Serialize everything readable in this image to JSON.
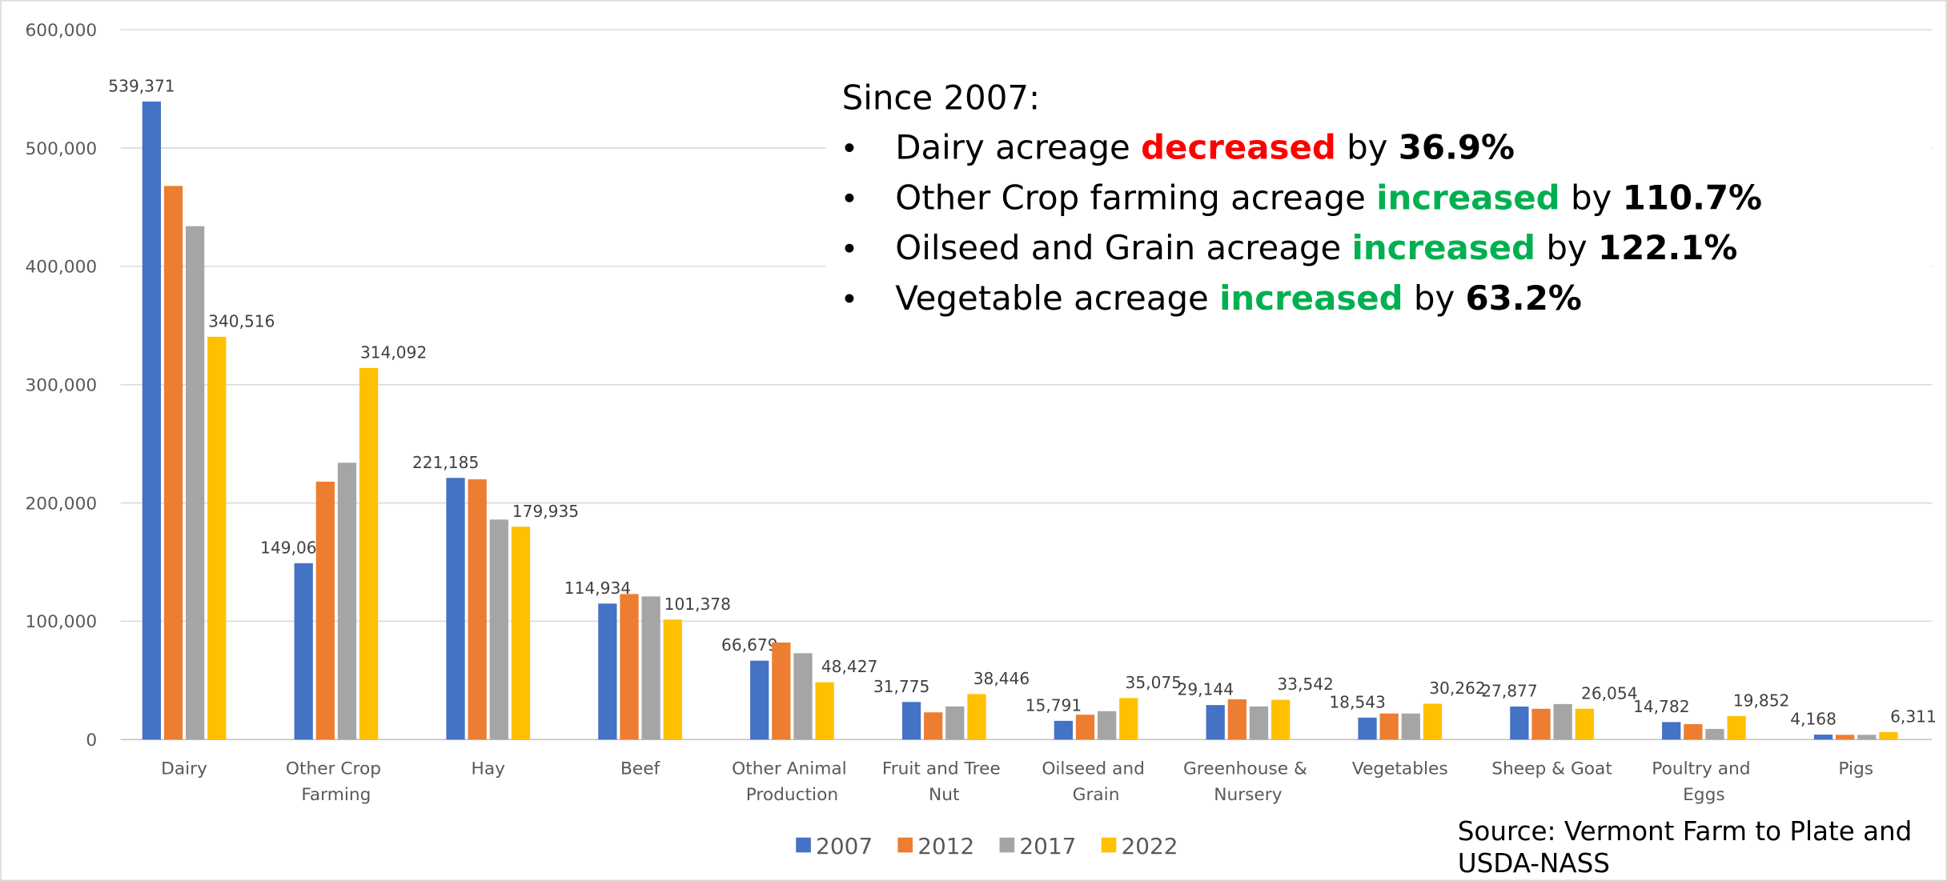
{
  "chart_data": {
    "type": "bar",
    "categories": [
      "Dairy",
      "Other Crop Farming",
      "Hay",
      "Beef",
      "Other Animal Production",
      "Fruit and Tree Nut",
      "Oilseed and Grain",
      "Greenhouse & Nursery",
      "Vegetables",
      "Sheep & Goat",
      "Poultry and Eggs",
      "Pigs"
    ],
    "series": [
      {
        "name": "2007",
        "color": "#4472c4",
        "values": [
          539371,
          149064,
          221185,
          114934,
          66679,
          31775,
          15791,
          29144,
          18543,
          27877,
          14782,
          4168
        ],
        "value_labels": [
          "539,371",
          "149,064",
          "221,185",
          "114,934",
          "66,679",
          "31,775",
          "15,791",
          "29,144",
          "18,543",
          "27,877",
          "14,782",
          "4,168"
        ]
      },
      {
        "name": "2012",
        "color": "#ed7d31",
        "values": [
          468000,
          218000,
          220000,
          123000,
          82000,
          23000,
          21000,
          34000,
          22000,
          26000,
          13000,
          4000
        ]
      },
      {
        "name": "2017",
        "color": "#a5a5a5",
        "values": [
          434000,
          234000,
          186000,
          121000,
          73000,
          28000,
          24000,
          28000,
          22000,
          30000,
          9000,
          4000
        ]
      },
      {
        "name": "2022",
        "color": "#ffc000",
        "values": [
          340516,
          314092,
          179935,
          101378,
          48427,
          38446,
          35075,
          33542,
          30262,
          26054,
          19852,
          6311
        ],
        "value_labels": [
          "340,516",
          "314,092",
          "179,935",
          "101,378",
          "48,427",
          "38,446",
          "35,075",
          "33,542",
          "30,262",
          "26,054",
          "19,852",
          "6,311"
        ]
      }
    ],
    "ylim": [
      0,
      600000
    ],
    "yticks": [
      0,
      {
        "value": 100000,
        "label": "100,000"
      },
      {
        "value": 200000,
        "label": "200,000"
      },
      {
        "value": 300000,
        "label": "300,000"
      },
      {
        "value": 400000,
        "label": "400,000"
      },
      {
        "value": 500000,
        "label": "500,000"
      },
      {
        "value": 600000,
        "label": "600,000"
      }
    ],
    "grid": true,
    "legend": "bottom",
    "annotation": {
      "heading": "Since 2007:",
      "bullets": [
        [
          {
            "text": "Dairy acreage "
          },
          {
            "text": "decreased",
            "color": "#ff0000",
            "bold": true
          },
          {
            "text": " by "
          },
          {
            "text": "36.9%",
            "bold": true
          }
        ],
        [
          {
            "text": "Other Crop farming acreage "
          },
          {
            "text": "increased",
            "color": "#00b050",
            "bold": true
          },
          {
            "text": " by "
          },
          {
            "text": "110.7%",
            "bold": true
          }
        ],
        [
          {
            "text": "Oilseed and Grain acreage "
          },
          {
            "text": "increased",
            "color": "#00b050",
            "bold": true
          },
          {
            "text": " by "
          },
          {
            "text": "122.1%",
            "bold": true
          }
        ],
        [
          {
            "text": "Vegetable acreage "
          },
          {
            "text": "increased",
            "color": "#00b050",
            "bold": true
          },
          {
            "text": " by "
          },
          {
            "text": "63.2%",
            "bold": true
          }
        ]
      ]
    },
    "source": [
      "Source: Vermont Farm to Plate and",
      "USDA-NASS"
    ]
  }
}
